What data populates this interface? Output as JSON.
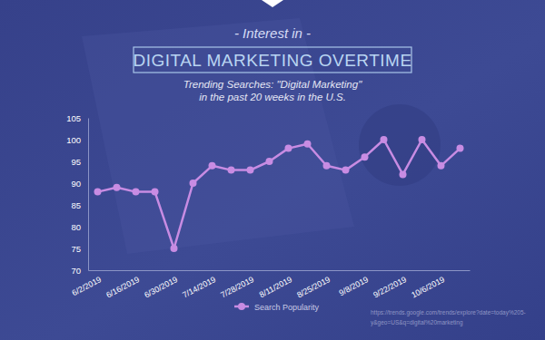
{
  "chart_data": {
    "type": "line",
    "pretitle": "- Interest in -",
    "title": "DIGITAL MARKETING OVERTIME",
    "subtitle": [
      "Trending Searches: \"Digital Marketing\"",
      "in the past 20 weeks in the U.S."
    ],
    "source": [
      "https://trends.google.com/trends/explore?date=today%205-",
      "y&geo=US&q=digital%20marketing"
    ],
    "categories": [
      "6/2/2019",
      null,
      "6/16/2019",
      null,
      "6/30/2019",
      null,
      "7/14/2019",
      null,
      "7/28/2019",
      null,
      "8/11/2019",
      null,
      "8/25/2019",
      null,
      "9/8/2019",
      null,
      "9/22/2019",
      null,
      "10/6/2019",
      null
    ],
    "series": [
      {
        "name": "Search Popularity",
        "color": "#c88ce3",
        "marker": "circle",
        "values": [
          88,
          89,
          88,
          88,
          75,
          90,
          94,
          93,
          93,
          95,
          98,
          99,
          94,
          93,
          96,
          100,
          92,
          100,
          94,
          98
        ]
      }
    ],
    "ylim": [
      70,
      105
    ],
    "yticks": [
      70,
      75,
      80,
      85,
      90,
      95,
      100,
      105
    ],
    "grid": false,
    "legend": "bottom"
  }
}
